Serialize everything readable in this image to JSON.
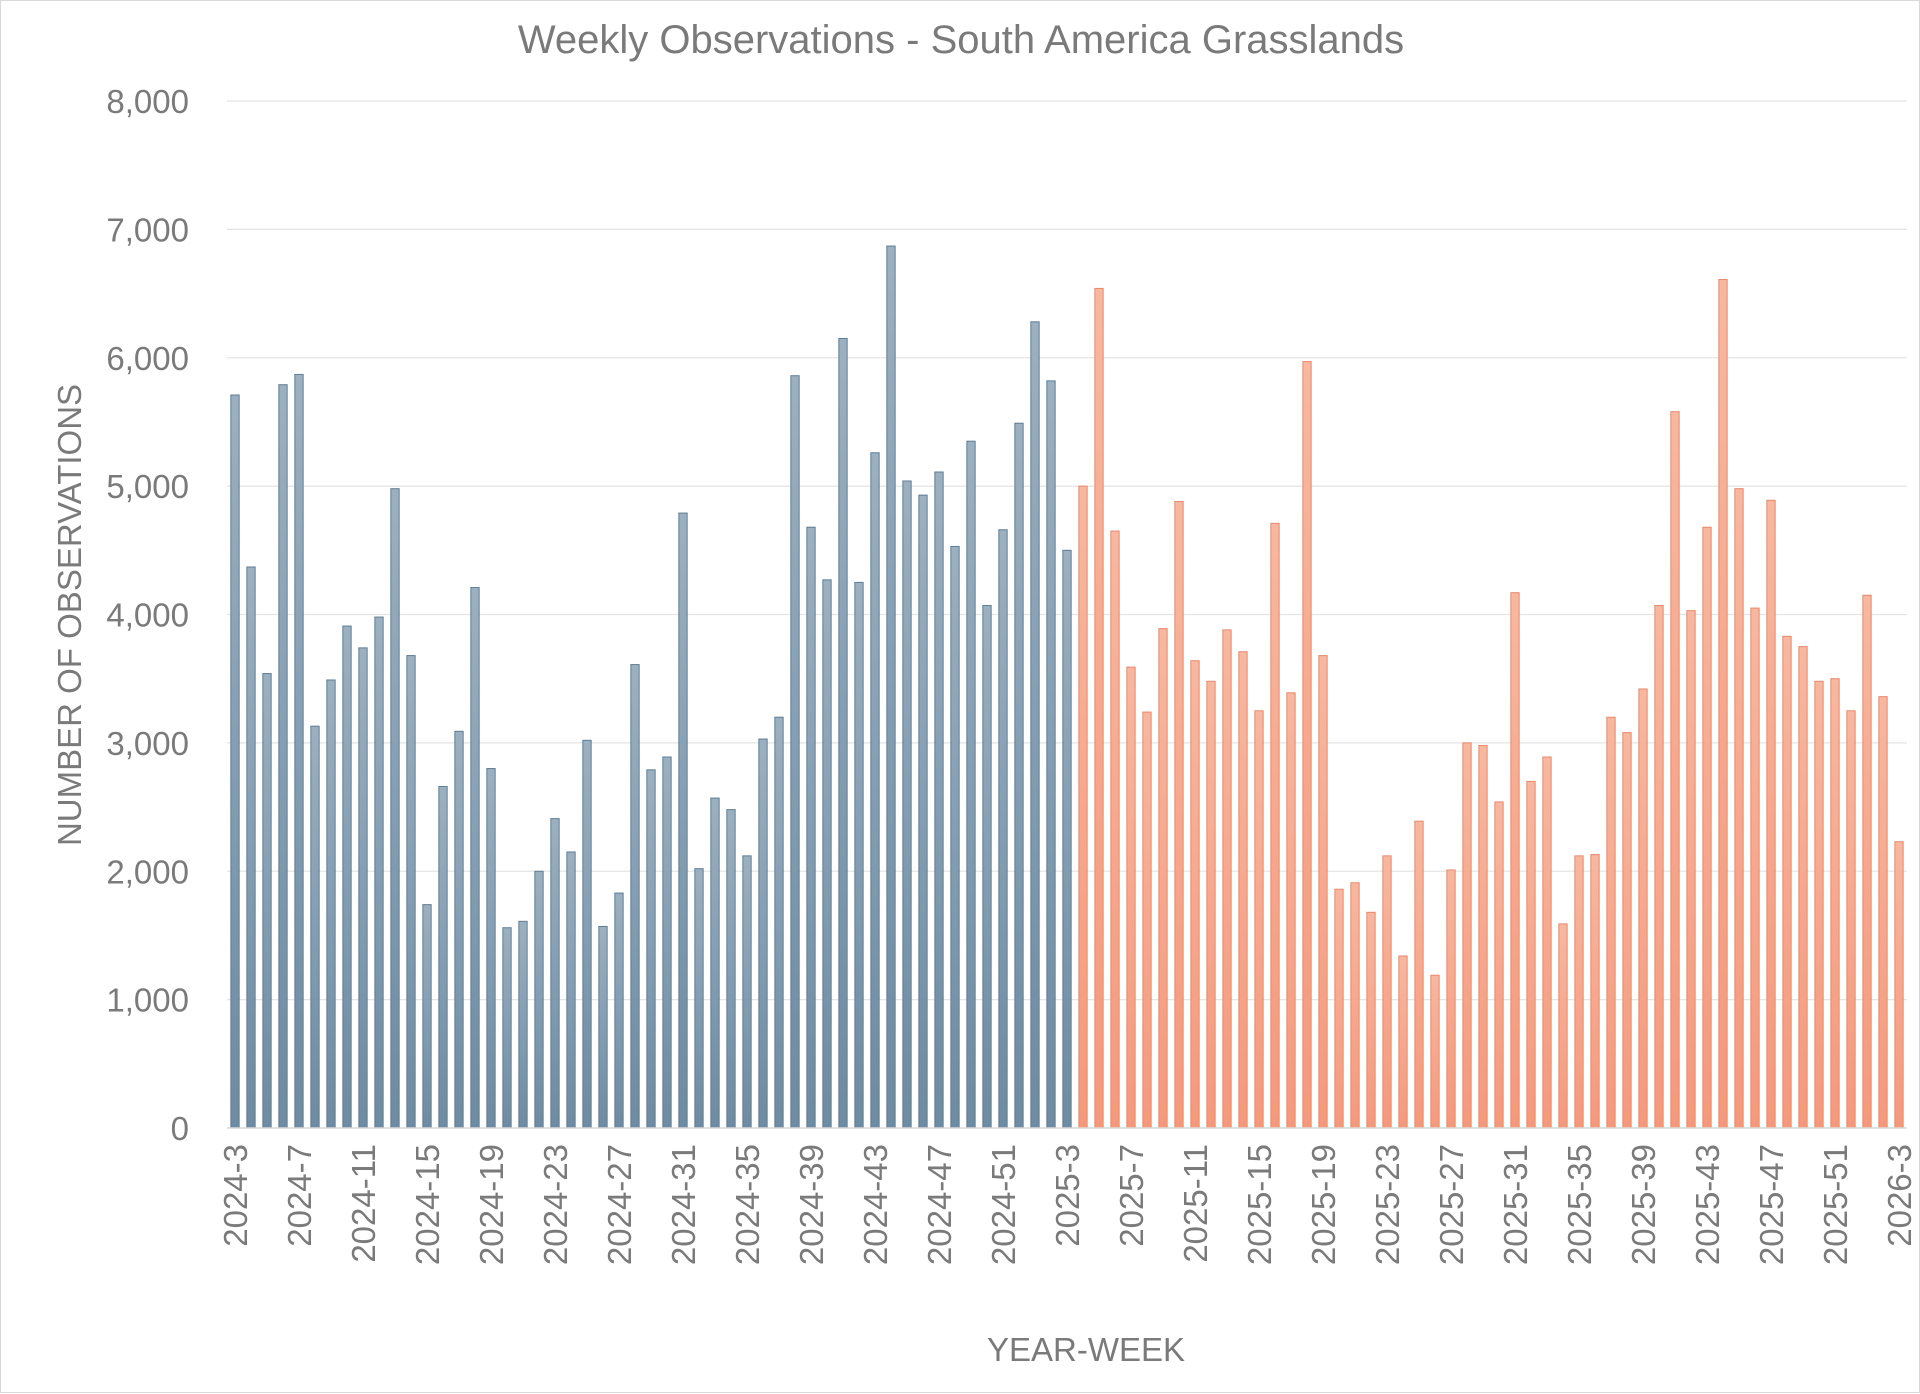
{
  "chart_data": {
    "type": "bar",
    "title": "Weekly Observations - South America Grasslands",
    "xlabel": "YEAR-WEEK",
    "ylabel": "NUMBER OF OBSERVATIONS",
    "ylim": [
      0,
      8000
    ],
    "yticks": [
      0,
      1000,
      2000,
      3000,
      4000,
      5000,
      6000,
      7000,
      8000
    ],
    "ytick_labels": [
      "0",
      "1,000",
      "2,000",
      "3,000",
      "4,000",
      "5,000",
      "6,000",
      "7,000",
      "8,000"
    ],
    "grid": true,
    "x_tick_labels": [
      "2024-3",
      "2024-7",
      "2024-11",
      "2024-15",
      "2024-19",
      "2024-23",
      "2024-27",
      "2024-31",
      "2024-35",
      "2024-39",
      "2024-43",
      "2024-47",
      "2024-51",
      "2025-3",
      "2025-7",
      "2025-11",
      "2025-15",
      "2025-19",
      "2025-23",
      "2025-27",
      "2025-31",
      "2025-35",
      "2025-39",
      "2025-43",
      "2025-47",
      "2025-51",
      "2026-3"
    ],
    "series": [
      {
        "name": "2024",
        "color_top": "#9bb0c0",
        "color_bottom": "#6e8ba2",
        "stroke": "#5f7d94",
        "values": [
          5710,
          4370,
          3540,
          5790,
          5870,
          3130,
          3490,
          3910,
          3740,
          3980,
          4980,
          3680,
          1740,
          2660,
          3090,
          4210,
          2800,
          1560,
          1610,
          2000,
          2410,
          2150,
          3020,
          1570,
          1830,
          3610,
          2790,
          2890,
          4790,
          2020,
          2570,
          2480,
          2120,
          3030,
          3200,
          5860,
          4680,
          4270,
          6150,
          4250,
          5260,
          6870,
          5040,
          4930,
          5110,
          4530,
          5350,
          4070,
          4660,
          5490,
          6280,
          5820,
          4500
        ]
      },
      {
        "name": "2025",
        "color_top": "#f7b7a1",
        "color_bottom": "#f49a7b",
        "stroke": "#e8896b",
        "values": [
          5000,
          6540,
          4650,
          3590,
          3240,
          3890,
          4880,
          3640,
          3480,
          3880,
          3710,
          3250,
          4710,
          3390,
          5970,
          3680,
          1860,
          1910,
          1680,
          2120,
          1340,
          2390,
          1190,
          2010,
          3000,
          2980,
          2540,
          4170,
          2700,
          2890,
          1590,
          2120,
          2130,
          3200,
          3080,
          3420,
          4070,
          5580,
          4030,
          4680,
          6610,
          4980,
          4050,
          4890,
          3830,
          3750,
          3480,
          3500,
          3250,
          4150,
          3360,
          2230
        ]
      }
    ]
  }
}
